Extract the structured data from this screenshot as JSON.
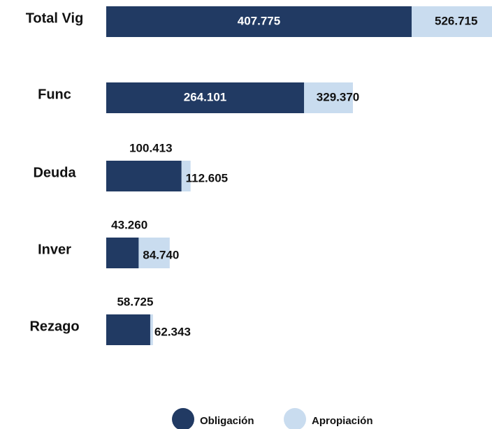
{
  "chart_data": {
    "type": "bar",
    "orientation": "horizontal",
    "categories": [
      "Total Vig",
      "Func",
      "Deuda",
      "Inver",
      "Rezago"
    ],
    "series": [
      {
        "name": "Obligación",
        "color": "#213a63",
        "values": [
          407775,
          264101,
          100413,
          43260,
          58725
        ],
        "value_labels": [
          "407.775",
          "264.101",
          "100.413",
          "43.260",
          "58.725"
        ]
      },
      {
        "name": "Apropiación",
        "color": "#c9dcef",
        "values": [
          526715,
          329370,
          112605,
          84740,
          62343
        ],
        "value_labels": [
          "526.715",
          "329.370",
          "112.605",
          "84.740",
          "62.343"
        ]
      }
    ],
    "legend": "bottom"
  }
}
